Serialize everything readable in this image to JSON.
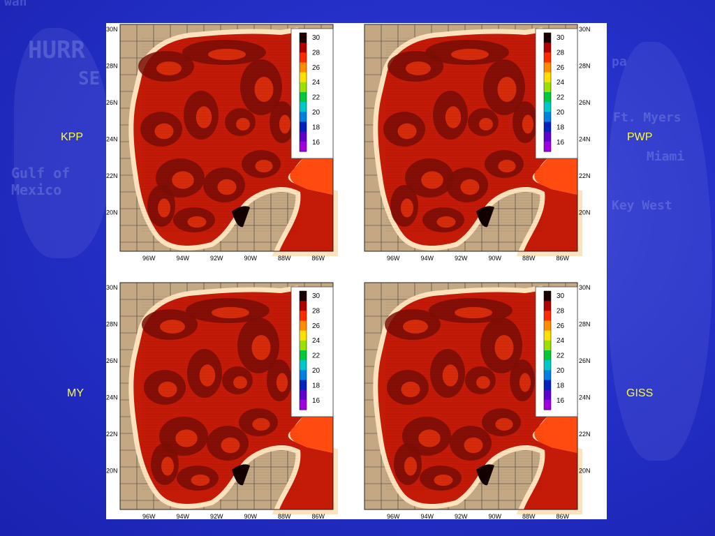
{
  "background_text": {
    "word1": "HURR",
    "word2": "SE",
    "word3": "Gulf of",
    "word4": "Mexico",
    "word5": "Ft. Myers",
    "word6": "Miami",
    "word7": "Key West",
    "word8": "wan",
    "word9": "pa"
  },
  "panels": [
    {
      "label": "KPP",
      "lat_side": "left"
    },
    {
      "label": "PWP",
      "lat_side": "right"
    },
    {
      "label": "MY",
      "lat_side": "left"
    },
    {
      "label": "GISS",
      "lat_side": "right"
    }
  ],
  "lat_ticks": [
    "30N",
    "28N",
    "26N",
    "24N",
    "22N",
    "20N"
  ],
  "lon_ticks": [
    "96W",
    "94W",
    "92W",
    "90W",
    "88W",
    "86W"
  ],
  "colorbar": {
    "ticks": [
      "30",
      "28",
      "26",
      "24",
      "22",
      "20",
      "18",
      "16"
    ],
    "colors": [
      "#1a0000",
      "#b00000",
      "#ff2a00",
      "#ff8c00",
      "#ffe000",
      "#9be000",
      "#00c83c",
      "#00c8c8",
      "#0080e0",
      "#0020c0",
      "#6000d0",
      "#a000e0"
    ]
  },
  "colors": {
    "land": "#c4a884",
    "coast": "#fde3bd",
    "warm_base": "#c41a08",
    "dark_core": "#7a0e06",
    "open_sea": "#ff4a10",
    "label": "#ffff33"
  }
}
